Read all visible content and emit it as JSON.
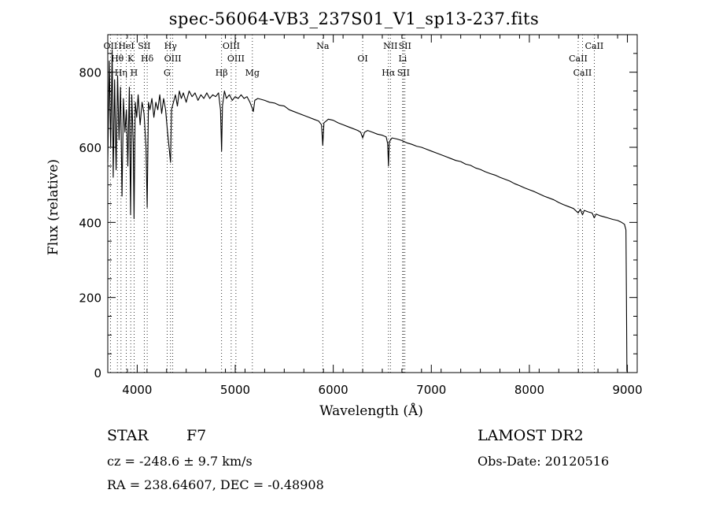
{
  "header": {
    "title": "spec-56064-VB3_237S01_V1_sp13-237.fits"
  },
  "info": {
    "object_class": "STAR",
    "subclass": "F7",
    "survey": "LAMOST DR2",
    "cz": "cz = -248.6 ± 9.7 km/s",
    "obs_date": "Obs-Date: 20120516",
    "radec": "RA = 238.64607, DEC =  -0.48908"
  },
  "chart_data": {
    "type": "line",
    "title": "spec-56064-VB3_237S01_V1_sp13-237.fits",
    "xlabel": "Wavelength (Å)",
    "ylabel": "Flux (relative)",
    "xlim": [
      3700,
      9100
    ],
    "ylim": [
      0,
      900
    ],
    "xticks": [
      4000,
      5000,
      6000,
      7000,
      8000,
      9000
    ],
    "yticks": [
      0,
      200,
      400,
      600,
      800
    ],
    "line_color": "#000000",
    "series": [
      {
        "values_note": "",
        "points": [
          [
            3700,
            560
          ],
          [
            3715,
            830
          ],
          [
            3730,
            600
          ],
          [
            3745,
            860
          ],
          [
            3755,
            520
          ],
          [
            3770,
            780
          ],
          [
            3785,
            540
          ],
          [
            3800,
            790
          ],
          [
            3815,
            620
          ],
          [
            3830,
            760
          ],
          [
            3845,
            470
          ],
          [
            3860,
            730
          ],
          [
            3875,
            640
          ],
          [
            3890,
            700
          ],
          [
            3905,
            550
          ],
          [
            3920,
            760
          ],
          [
            3933,
            420
          ],
          [
            3945,
            740
          ],
          [
            3960,
            610
          ],
          [
            3968,
            410
          ],
          [
            3980,
            720
          ],
          [
            3995,
            680
          ],
          [
            4010,
            740
          ],
          [
            4030,
            660
          ],
          [
            4050,
            720
          ],
          [
            4070,
            690
          ],
          [
            4090,
            600
          ],
          [
            4102,
            440
          ],
          [
            4115,
            720
          ],
          [
            4130,
            700
          ],
          [
            4150,
            730
          ],
          [
            4170,
            680
          ],
          [
            4190,
            720
          ],
          [
            4210,
            700
          ],
          [
            4230,
            740
          ],
          [
            4250,
            690
          ],
          [
            4270,
            730
          ],
          [
            4290,
            700
          ],
          [
            4310,
            640
          ],
          [
            4325,
            600
          ],
          [
            4340,
            560
          ],
          [
            4350,
            700
          ],
          [
            4370,
            720
          ],
          [
            4390,
            740
          ],
          [
            4410,
            710
          ],
          [
            4430,
            750
          ],
          [
            4450,
            730
          ],
          [
            4470,
            745
          ],
          [
            4500,
            720
          ],
          [
            4530,
            750
          ],
          [
            4560,
            735
          ],
          [
            4590,
            745
          ],
          [
            4620,
            725
          ],
          [
            4650,
            740
          ],
          [
            4680,
            730
          ],
          [
            4710,
            745
          ],
          [
            4740,
            730
          ],
          [
            4770,
            740
          ],
          [
            4800,
            735
          ],
          [
            4830,
            745
          ],
          [
            4850,
            700
          ],
          [
            4861,
            590
          ],
          [
            4870,
            710
          ],
          [
            4890,
            750
          ],
          [
            4910,
            730
          ],
          [
            4940,
            740
          ],
          [
            4970,
            725
          ],
          [
            5000,
            735
          ],
          [
            5030,
            730
          ],
          [
            5060,
            740
          ],
          [
            5090,
            730
          ],
          [
            5120,
            735
          ],
          [
            5150,
            720
          ],
          [
            5172,
            705
          ],
          [
            5184,
            695
          ],
          [
            5200,
            725
          ],
          [
            5230,
            730
          ],
          [
            5260,
            728
          ],
          [
            5300,
            725
          ],
          [
            5350,
            720
          ],
          [
            5400,
            718
          ],
          [
            5450,
            712
          ],
          [
            5500,
            710
          ],
          [
            5550,
            700
          ],
          [
            5600,
            695
          ],
          [
            5650,
            690
          ],
          [
            5700,
            685
          ],
          [
            5750,
            680
          ],
          [
            5800,
            675
          ],
          [
            5850,
            670
          ],
          [
            5880,
            660
          ],
          [
            5893,
            605
          ],
          [
            5905,
            665
          ],
          [
            5950,
            675
          ],
          [
            6000,
            672
          ],
          [
            6050,
            665
          ],
          [
            6100,
            660
          ],
          [
            6150,
            655
          ],
          [
            6200,
            650
          ],
          [
            6250,
            645
          ],
          [
            6280,
            640
          ],
          [
            6300,
            625
          ],
          [
            6320,
            640
          ],
          [
            6350,
            645
          ],
          [
            6400,
            640
          ],
          [
            6450,
            635
          ],
          [
            6500,
            632
          ],
          [
            6540,
            628
          ],
          [
            6555,
            610
          ],
          [
            6563,
            550
          ],
          [
            6572,
            615
          ],
          [
            6600,
            625
          ],
          [
            6650,
            622
          ],
          [
            6700,
            618
          ],
          [
            6750,
            612
          ],
          [
            6800,
            608
          ],
          [
            6850,
            603
          ],
          [
            6900,
            600
          ],
          [
            6950,
            595
          ],
          [
            7000,
            590
          ],
          [
            7050,
            585
          ],
          [
            7100,
            580
          ],
          [
            7150,
            575
          ],
          [
            7200,
            570
          ],
          [
            7250,
            565
          ],
          [
            7300,
            562
          ],
          [
            7350,
            555
          ],
          [
            7400,
            552
          ],
          [
            7450,
            545
          ],
          [
            7500,
            541
          ],
          [
            7550,
            535
          ],
          [
            7600,
            530
          ],
          [
            7650,
            526
          ],
          [
            7700,
            520
          ],
          [
            7750,
            515
          ],
          [
            7800,
            510
          ],
          [
            7850,
            503
          ],
          [
            7900,
            498
          ],
          [
            7950,
            492
          ],
          [
            8000,
            487
          ],
          [
            8050,
            482
          ],
          [
            8100,
            476
          ],
          [
            8150,
            470
          ],
          [
            8200,
            465
          ],
          [
            8250,
            460
          ],
          [
            8300,
            453
          ],
          [
            8350,
            447
          ],
          [
            8400,
            442
          ],
          [
            8450,
            437
          ],
          [
            8498,
            425
          ],
          [
            8520,
            435
          ],
          [
            8542,
            420
          ],
          [
            8560,
            432
          ],
          [
            8600,
            428
          ],
          [
            8640,
            425
          ],
          [
            8662,
            412
          ],
          [
            8680,
            422
          ],
          [
            8720,
            418
          ],
          [
            8760,
            415
          ],
          [
            8800,
            412
          ],
          [
            8850,
            408
          ],
          [
            8900,
            405
          ],
          [
            8940,
            400
          ],
          [
            8970,
            395
          ],
          [
            8985,
            380
          ],
          [
            8990,
            200
          ],
          [
            8995,
            5
          ],
          [
            9000,
            0
          ]
        ]
      }
    ],
    "lines": [
      {
        "name": "Hθ",
        "wave": 3798
      },
      {
        "name": "OII",
        "wave": 3727
      },
      {
        "name": "Hη",
        "wave": 3835
      },
      {
        "name": "K",
        "wave": 3934
      },
      {
        "name": "HeI",
        "wave": 3889
      },
      {
        "name": "H",
        "wave": 3968
      },
      {
        "name": "SII",
        "wave": 4072
      },
      {
        "name": "Hδ",
        "wave": 4102
      },
      {
        "name": "OIII",
        "wave": 4363
      },
      {
        "name": "Hγ",
        "wave": 4340
      },
      {
        "name": "G",
        "wave": 4305
      },
      {
        "name": "Hβ",
        "wave": 4861
      },
      {
        "name": "OIII",
        "wave": 4959
      },
      {
        "name": "OIII",
        "wave": 5007
      },
      {
        "name": "Mg",
        "wave": 5175
      },
      {
        "name": "Na",
        "wave": 5893
      },
      {
        "name": "OI",
        "wave": 6300
      },
      {
        "name": "NII",
        "wave": 6583
      },
      {
        "name": "Hα",
        "wave": 6563
      },
      {
        "name": "Li",
        "wave": 6708
      },
      {
        "name": "SII",
        "wave": 6716
      },
      {
        "name": "SII",
        "wave": 6731
      },
      {
        "name": "CaII",
        "wave": 8498
      },
      {
        "name": "CaII",
        "wave": 8542
      },
      {
        "name": "CaII",
        "wave": 8662
      }
    ]
  }
}
